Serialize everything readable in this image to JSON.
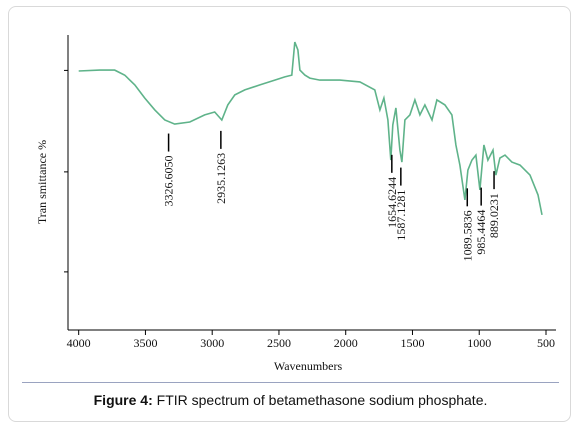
{
  "chart_data": {
    "type": "line",
    "xlabel": "Wavenumbers",
    "ylabel": "Tran smittance %",
    "xlim": [
      4080,
      425
    ],
    "ylim": [
      0,
      100
    ],
    "xticks": [
      4000,
      3500,
      3000,
      2500,
      2000,
      1500,
      1000,
      500
    ],
    "yticks": [
      88,
      53.6,
      19.7
    ],
    "ytick_labels": false,
    "series": [
      {
        "name": "FTIR spectrum",
        "color": "#5fb38a",
        "x": [
          4000,
          3843,
          3730,
          3655,
          3580,
          3505,
          3430,
          3355,
          3281,
          3168,
          3056,
          2981,
          2928,
          2883,
          2831,
          2756,
          2643,
          2531,
          2456,
          2404,
          2381,
          2358,
          2343,
          2306,
          2269,
          2194,
          2044,
          1894,
          1782,
          1744,
          1714,
          1684,
          1662,
          1647,
          1624,
          1594,
          1579,
          1557,
          1519,
          1482,
          1444,
          1407,
          1354,
          1317,
          1257,
          1205,
          1175,
          1145,
          1107,
          1085,
          1055,
          1025,
          995,
          965,
          935,
          897,
          875,
          845,
          807,
          755,
          695,
          620,
          560,
          530
        ],
        "values": [
          87.8,
          88.1,
          88.1,
          86.4,
          83.1,
          78.6,
          74.6,
          71.2,
          69.8,
          70.5,
          72.9,
          73.9,
          71.2,
          76.3,
          79.7,
          81.4,
          83.1,
          84.7,
          85.8,
          86.4,
          97.6,
          94.9,
          88.1,
          86.4,
          85.4,
          84.7,
          84.7,
          84.1,
          81.4,
          74.6,
          78.6,
          71.2,
          57.6,
          69.5,
          75.3,
          61,
          56.9,
          71.2,
          72.9,
          78,
          72.9,
          76.3,
          71.2,
          78,
          76.3,
          72.9,
          62.7,
          55.9,
          44.1,
          54.2,
          57.6,
          59.3,
          47.5,
          62.7,
          57.6,
          61,
          52.5,
          58.3,
          59.3,
          56.9,
          55.9,
          52.5,
          45.8,
          39
        ]
      }
    ],
    "annotations": [
      {
        "x": 3326.605,
        "label": "3326.6050"
      },
      {
        "x": 2935.1263,
        "label": "2935.1263"
      },
      {
        "x": 1654.6244,
        "label": "1654.6244"
      },
      {
        "x": 1587.1281,
        "label": "1587.1281"
      },
      {
        "x": 1089.5836,
        "label": "1089.5836"
      },
      {
        "x": 985.4464,
        "label": "985.4464"
      },
      {
        "x": 889.0231,
        "label": "889.0231"
      }
    ]
  },
  "caption": {
    "label": "Figure 4:",
    "text": "FTIR spectrum of betamethasone sodium phosphate."
  }
}
